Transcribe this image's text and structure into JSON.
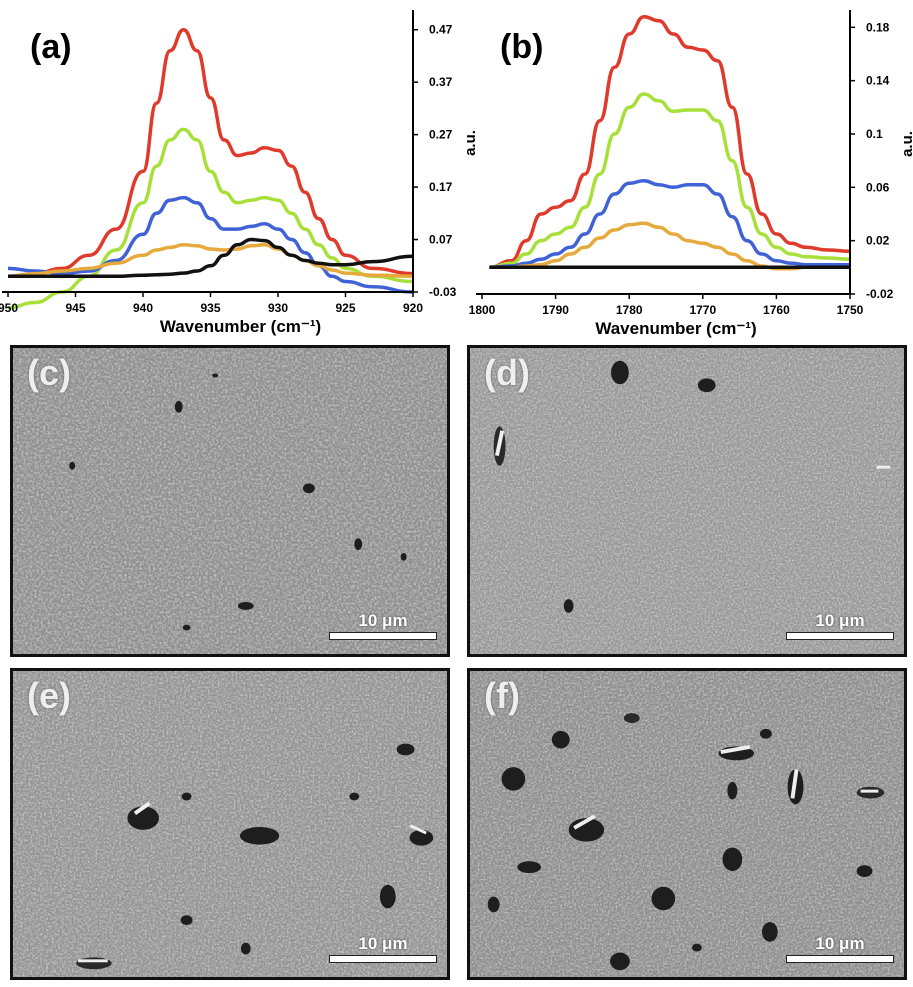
{
  "chart_data": [
    {
      "panel": "(a)",
      "type": "line",
      "xlabel": "Wavenumber (cm⁻¹)",
      "ylabel": "a.u.",
      "xlim": [
        950,
        920
      ],
      "ylim": [
        -0.03,
        0.5
      ],
      "x_ticks": [
        "950",
        "945",
        "940",
        "935",
        "930",
        "925",
        "920"
      ],
      "x_tick_values": [
        950,
        945,
        940,
        935,
        930,
        925,
        920
      ],
      "y_ticks": [
        "-0.03",
        "0.07",
        "0.17",
        "0.27",
        "0.37",
        "0.47"
      ],
      "y_tick_values": [
        -0.03,
        0.07,
        0.17,
        0.27,
        0.37,
        0.47
      ],
      "x": [
        950,
        948,
        946,
        944,
        942,
        940,
        939,
        938,
        937,
        936,
        935,
        934,
        933,
        932,
        931,
        930,
        929,
        928,
        927,
        926,
        925,
        923,
        920
      ],
      "series": [
        {
          "color": "#e03a2c",
          "values": [
            0.0,
            0.005,
            0.015,
            0.04,
            0.09,
            0.2,
            0.33,
            0.43,
            0.47,
            0.43,
            0.34,
            0.26,
            0.23,
            0.235,
            0.245,
            0.24,
            0.21,
            0.16,
            0.11,
            0.07,
            0.04,
            0.015,
            0.005
          ]
        },
        {
          "color": "#a8e03a",
          "values": [
            -0.06,
            -0.05,
            -0.03,
            0.0,
            0.05,
            0.14,
            0.21,
            0.26,
            0.28,
            0.26,
            0.2,
            0.16,
            0.14,
            0.145,
            0.15,
            0.145,
            0.12,
            0.09,
            0.06,
            0.035,
            0.015,
            0.0,
            -0.01
          ]
        },
        {
          "color": "#3f62d6",
          "values": [
            0.015,
            0.01,
            0.005,
            0.01,
            0.03,
            0.08,
            0.12,
            0.145,
            0.15,
            0.14,
            0.11,
            0.09,
            0.09,
            0.095,
            0.1,
            0.09,
            0.07,
            0.045,
            0.02,
            0.0,
            -0.01,
            -0.02,
            -0.03
          ]
        },
        {
          "color": "#e6a93c",
          "values": [
            0.0,
            0.005,
            0.01,
            0.015,
            0.025,
            0.04,
            0.05,
            0.055,
            0.06,
            0.058,
            0.052,
            0.05,
            0.052,
            0.058,
            0.06,
            0.052,
            0.04,
            0.03,
            0.02,
            0.012,
            0.006,
            0.002,
            0.0
          ]
        },
        {
          "color": "#111111",
          "values": [
            0.0,
            0.0,
            0.0,
            0.0,
            0.0,
            0.002,
            0.003,
            0.004,
            0.006,
            0.01,
            0.02,
            0.04,
            0.06,
            0.07,
            0.068,
            0.055,
            0.04,
            0.03,
            0.025,
            0.022,
            0.022,
            0.028,
            0.038
          ]
        }
      ]
    },
    {
      "panel": "(b)",
      "type": "line",
      "xlabel": "Wavenumber (cm⁻¹)",
      "ylabel": "a.u.",
      "xlim": [
        1800,
        1750
      ],
      "ylim": [
        -0.02,
        0.19
      ],
      "x_ticks": [
        "1800",
        "1790",
        "1780",
        "1770",
        "1760",
        "1750"
      ],
      "x_tick_values": [
        1800,
        1790,
        1780,
        1770,
        1760,
        1750
      ],
      "y_ticks": [
        "-0.02",
        "0.02",
        "0.06",
        "0.1",
        "0.14",
        "0.18"
      ],
      "y_tick_values": [
        -0.02,
        0.02,
        0.06,
        0.1,
        0.14,
        0.18
      ],
      "x": [
        1799,
        1796,
        1794,
        1792,
        1790,
        1788,
        1786,
        1784,
        1782,
        1780,
        1778,
        1776,
        1774,
        1772,
        1770,
        1768,
        1766,
        1764,
        1762,
        1760,
        1758,
        1756,
        1753,
        1750
      ],
      "series": [
        {
          "color": "#e03a2c",
          "values": [
            0.0,
            0.005,
            0.02,
            0.04,
            0.045,
            0.05,
            0.07,
            0.11,
            0.15,
            0.175,
            0.188,
            0.185,
            0.175,
            0.165,
            0.163,
            0.155,
            0.12,
            0.07,
            0.04,
            0.025,
            0.018,
            0.015,
            0.013,
            0.012
          ]
        },
        {
          "color": "#a8e03a",
          "values": [
            0.0,
            0.003,
            0.01,
            0.02,
            0.025,
            0.03,
            0.045,
            0.07,
            0.1,
            0.12,
            0.13,
            0.125,
            0.117,
            0.118,
            0.118,
            0.11,
            0.08,
            0.045,
            0.025,
            0.015,
            0.01,
            0.008,
            0.007,
            0.006
          ]
        },
        {
          "color": "#3f62d6",
          "values": [
            0.0,
            0.001,
            0.003,
            0.006,
            0.01,
            0.015,
            0.025,
            0.04,
            0.055,
            0.063,
            0.065,
            0.062,
            0.06,
            0.062,
            0.062,
            0.055,
            0.038,
            0.02,
            0.01,
            0.005,
            0.003,
            0.002,
            0.002,
            0.002
          ]
        },
        {
          "color": "#e6a93c",
          "values": [
            0.0,
            0.0,
            0.001,
            0.002,
            0.005,
            0.01,
            0.015,
            0.022,
            0.028,
            0.032,
            0.033,
            0.03,
            0.025,
            0.02,
            0.018,
            0.015,
            0.01,
            0.005,
            0.001,
            -0.001,
            -0.001,
            0.0,
            0.0,
            0.0
          ]
        },
        {
          "color": "#111111",
          "values": [
            0.0,
            0.0,
            0.0,
            0.0,
            0.0,
            0.0,
            0.0,
            0.0,
            0.0,
            0.0,
            0.0,
            0.0,
            0.0,
            0.0,
            0.0,
            0.0,
            0.0,
            0.0,
            0.0,
            0.0,
            0.0,
            0.0,
            0.0,
            0.0
          ]
        }
      ]
    }
  ],
  "sem_panels": [
    {
      "label": "(c)",
      "scale_text": "10 μm"
    },
    {
      "label": "(d)",
      "scale_text": "10 μm"
    },
    {
      "label": "(e)",
      "scale_text": "10 μm"
    },
    {
      "label": "(f)",
      "scale_text": "10 μm"
    }
  ]
}
